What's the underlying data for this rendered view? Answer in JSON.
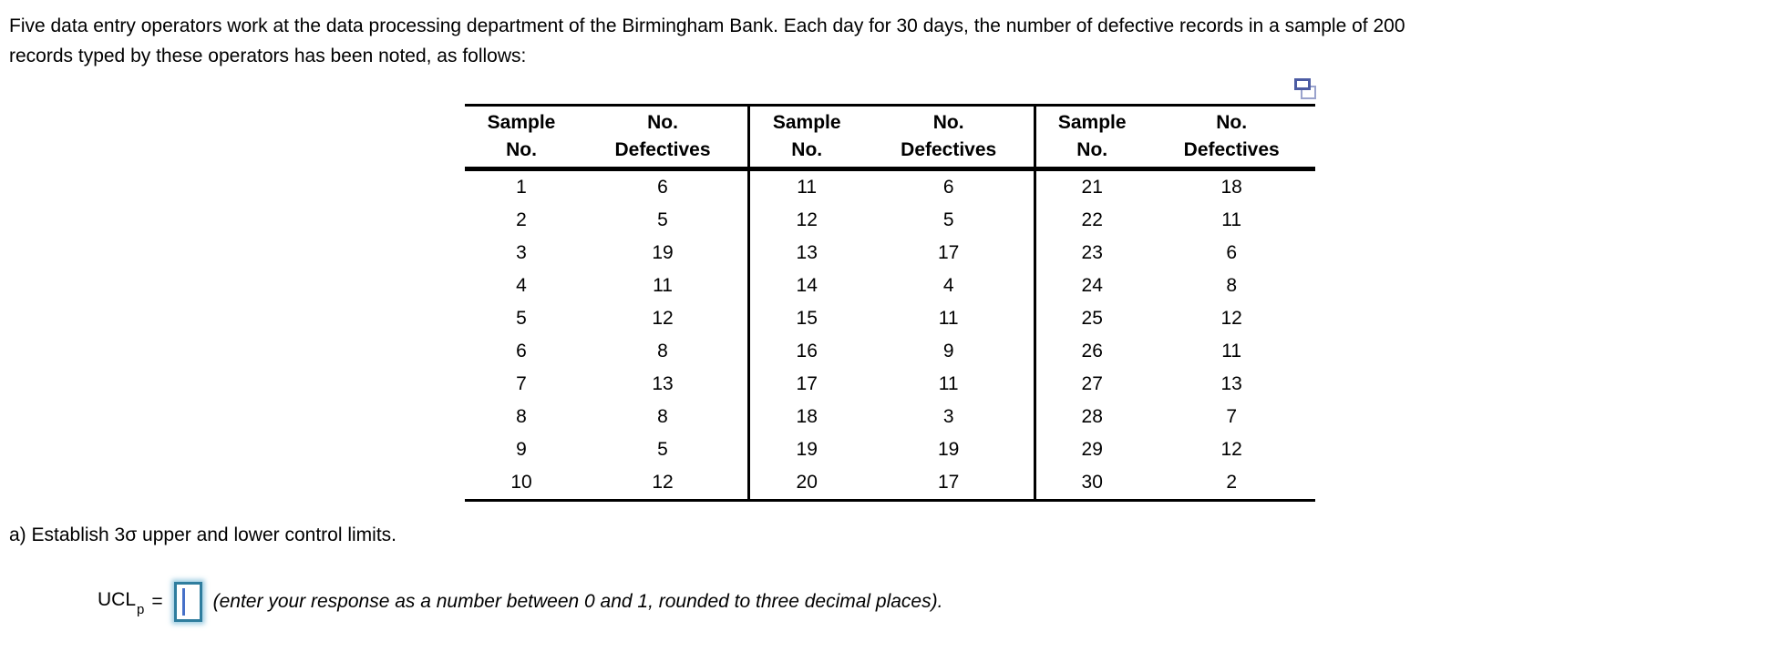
{
  "problem": {
    "statement": "Five data entry operators work at the data processing department of the Birmingham Bank. Each day for 30 days, the number of defective records in a sample of 200 records typed by these operators has been noted, as follows:"
  },
  "icons": {
    "popout": "popout-table-icon-two-overlapping-windows"
  },
  "table": {
    "headers": {
      "sample": "Sample\nNo.",
      "defectives": "No.\nDefectives"
    },
    "groups": [
      {
        "rows": [
          [
            "1",
            "6"
          ],
          [
            "2",
            "5"
          ],
          [
            "3",
            "19"
          ],
          [
            "4",
            "11"
          ],
          [
            "5",
            "12"
          ],
          [
            "6",
            "8"
          ],
          [
            "7",
            "13"
          ],
          [
            "8",
            "8"
          ],
          [
            "9",
            "5"
          ],
          [
            "10",
            "12"
          ]
        ]
      },
      {
        "rows": [
          [
            "11",
            "6"
          ],
          [
            "12",
            "5"
          ],
          [
            "13",
            "17"
          ],
          [
            "14",
            "4"
          ],
          [
            "15",
            "11"
          ],
          [
            "16",
            "9"
          ],
          [
            "17",
            "11"
          ],
          [
            "18",
            "3"
          ],
          [
            "19",
            "19"
          ],
          [
            "20",
            "17"
          ]
        ]
      },
      {
        "rows": [
          [
            "21",
            "18"
          ],
          [
            "22",
            "11"
          ],
          [
            "23",
            "6"
          ],
          [
            "24",
            "8"
          ],
          [
            "25",
            "12"
          ],
          [
            "26",
            "11"
          ],
          [
            "27",
            "13"
          ],
          [
            "28",
            "7"
          ],
          [
            "29",
            "12"
          ],
          [
            "30",
            "2"
          ]
        ]
      }
    ]
  },
  "question": {
    "part_a": "a) Establish 3σ upper and lower control limits.",
    "answer": {
      "label": "UCL",
      "subscript": "p",
      "equals": "=",
      "input_value": "",
      "hint": "(enter your response as a number between 0 and 1, rounded to three decimal places)."
    }
  },
  "colors": {
    "input-border": "#2e7d9e",
    "input-glow": "#7ab9d6",
    "caret": "#4670c8",
    "icon-front": "#4c5ca3",
    "icon-back": "#9aa3cd",
    "table-border": "#000000"
  }
}
